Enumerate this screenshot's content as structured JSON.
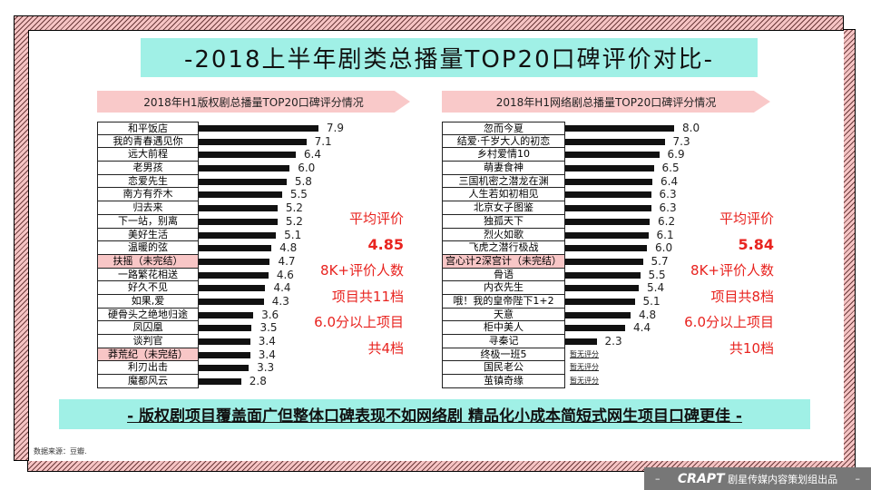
{
  "title": "-2018上半年剧类总播量TOP20口碑评价对比-",
  "colors": {
    "accent_cyan": "#a0f0e6",
    "tag_pink": "#f9c9c9",
    "highlight_pink": "#f8c6c6",
    "summary_red": "#e8231f",
    "bar": "#111111"
  },
  "chart_data": [
    {
      "type": "bar",
      "orientation": "horizontal",
      "title": "2018年H1版权剧总播量TOP20口碑评分情况",
      "categories": [
        "和平饭店",
        "我的青春遇见你",
        "远大前程",
        "老男孩",
        "恋爱先生",
        "南方有乔木",
        "归去来",
        "下一站，别离",
        "美好生活",
        "温暖的弦",
        "扶摇（未完结）",
        "一路繁花相送",
        "好久不见",
        "如果,爱",
        "硬骨头之绝地归途",
        "凤囚凰",
        "谈判官",
        "莽荒纪（未完结）",
        "利刃出击",
        "魔都风云"
      ],
      "values": [
        7.9,
        7.1,
        6.4,
        6.0,
        5.8,
        5.5,
        5.2,
        5.2,
        5.1,
        4.8,
        4.7,
        4.6,
        4.4,
        4.3,
        3.6,
        3.5,
        3.4,
        3.4,
        3.3,
        2.8
      ],
      "value_labels": [
        "7.9",
        "7.1",
        "6.4",
        "6.0",
        "5.8",
        "5.5",
        "5.2",
        "5.2",
        "5.1",
        "4.8",
        "4.7",
        "4.6",
        "4.4",
        "4.3",
        "3.6",
        "3.5",
        "3.4",
        "3.4",
        "3.3",
        "2.8"
      ],
      "highlighted": [
        10,
        17
      ],
      "summary": [
        "平均评价",
        "4.85",
        "8K+评价人数",
        "项目共11档",
        "6.0分以上项目",
        "共4档"
      ]
    },
    {
      "type": "bar",
      "orientation": "horizontal",
      "title": "2018年H1网络剧总播量TOP20口碑评分情况",
      "categories": [
        "忽而今夏",
        "结爱·千岁大人的初恋",
        "乡村爱情10",
        "萌妻食神",
        "三国机密之潜龙在渊",
        "人生若如初相见",
        "北京女子图鉴",
        "独孤天下",
        "烈火如歌",
        "飞虎之潜行极战",
        "宫心计2深宫计（未完结）",
        "骨语",
        "内衣先生",
        "哦！我的皇帝陛下1+2",
        "天意",
        "柜中美人",
        "寻秦记",
        "终极一班5",
        "国民老公",
        "茧镇奇缘"
      ],
      "values": [
        8.0,
        7.3,
        6.9,
        6.5,
        6.4,
        6.3,
        6.3,
        6.2,
        6.1,
        6.0,
        5.7,
        5.5,
        5.4,
        5.1,
        4.8,
        4.4,
        2.3,
        null,
        null,
        null
      ],
      "value_labels": [
        "8.0",
        "7.3",
        "6.9",
        "6.5",
        "6.4",
        "6.3",
        "6.3",
        "6.2",
        "6.1",
        "6.0",
        "5.7",
        "5.5",
        "5.4",
        "5.1",
        "4.8",
        "4.4",
        "2.3",
        "暂无评分",
        "暂无评分",
        "暂无评分"
      ],
      "highlighted": [
        10
      ],
      "summary": [
        "平均评价",
        "5.84",
        "8K+评价人数",
        "项目共8档",
        "6.0分以上项目",
        "共10档"
      ]
    }
  ],
  "banner": "- 版权剧项目覆盖面广但整体口碑表现不如网络剧 精品化小成本简短式网生项目口碑更佳 -",
  "source": "数据来源：豆瓣.",
  "badge": {
    "left": "–",
    "logo": "CRAPT",
    "text": "剧星传媒内容策划组出品",
    "right": "–"
  }
}
